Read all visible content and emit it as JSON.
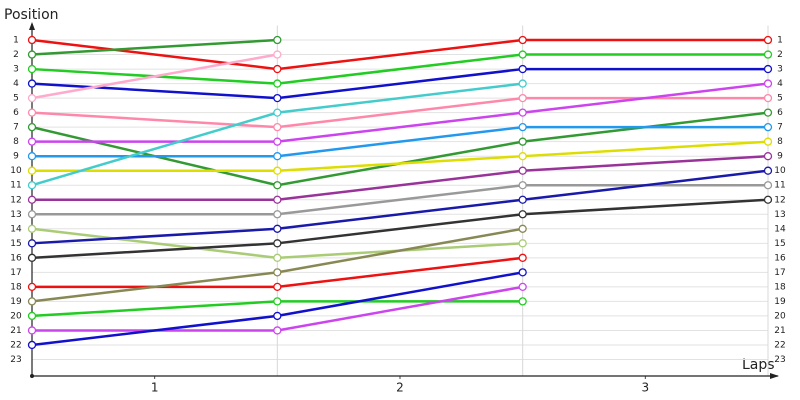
{
  "chart_data": {
    "type": "lap-chart",
    "y_label": "Position",
    "x_label": "Laps",
    "x": [
      0,
      1,
      2,
      3
    ],
    "xlim": [
      0,
      3
    ],
    "xticks": [
      {
        "value": 0.5,
        "label": "1"
      },
      {
        "value": 1.5,
        "label": "2"
      },
      {
        "value": 2.5,
        "label": "3"
      }
    ],
    "ylim": [
      0,
      24
    ],
    "y_reversed": true,
    "yticks": [
      1,
      2,
      3,
      4,
      5,
      6,
      7,
      8,
      9,
      10,
      11,
      12,
      13,
      14,
      15,
      16,
      17,
      18,
      19,
      20,
      21,
      22,
      23
    ],
    "grid": true,
    "series": [
      {
        "color": "#ee1111",
        "values": [
          1,
          3,
          1,
          1
        ]
      },
      {
        "color": "#339933",
        "values": [
          2,
          1,
          null,
          null
        ]
      },
      {
        "color": "#22cc22",
        "values": [
          3,
          4,
          2,
          2
        ]
      },
      {
        "color": "#1111cc",
        "values": [
          4,
          5,
          3,
          3
        ]
      },
      {
        "color": "#ffaacc",
        "values": [
          5,
          2,
          null,
          null
        ]
      },
      {
        "color": "#ff88aa",
        "values": [
          6,
          7,
          5,
          5
        ]
      },
      {
        "color": "#339933",
        "values": [
          7,
          11,
          8,
          6
        ]
      },
      {
        "color": "#cc44ee",
        "values": [
          8,
          8,
          6,
          4
        ]
      },
      {
        "color": "#2299ee",
        "values": [
          9,
          9,
          7,
          7
        ]
      },
      {
        "color": "#dddd00",
        "values": [
          10,
          10,
          9,
          8
        ]
      },
      {
        "color": "#44cccc",
        "values": [
          11,
          6,
          4,
          null
        ]
      },
      {
        "color": "#993399",
        "values": [
          12,
          12,
          10,
          9
        ]
      },
      {
        "color": "#999999",
        "values": [
          13,
          13,
          11,
          11
        ]
      },
      {
        "color": "#aacc77",
        "values": [
          14,
          16,
          15,
          null
        ]
      },
      {
        "color": "#1a1aaa",
        "values": [
          15,
          14,
          12,
          10
        ]
      },
      {
        "color": "#333333",
        "values": [
          16,
          15,
          13,
          12
        ]
      },
      {
        "color": "#ee1111",
        "values": [
          18,
          18,
          16,
          null
        ]
      },
      {
        "color": "#888855",
        "values": [
          19,
          17,
          14,
          null
        ]
      },
      {
        "color": "#22cc22",
        "values": [
          20,
          19,
          19,
          null
        ]
      },
      {
        "color": "#cc44ee",
        "values": [
          21,
          21,
          18,
          null
        ]
      },
      {
        "color": "#1111cc",
        "values": [
          22,
          20,
          17,
          null
        ]
      }
    ]
  }
}
